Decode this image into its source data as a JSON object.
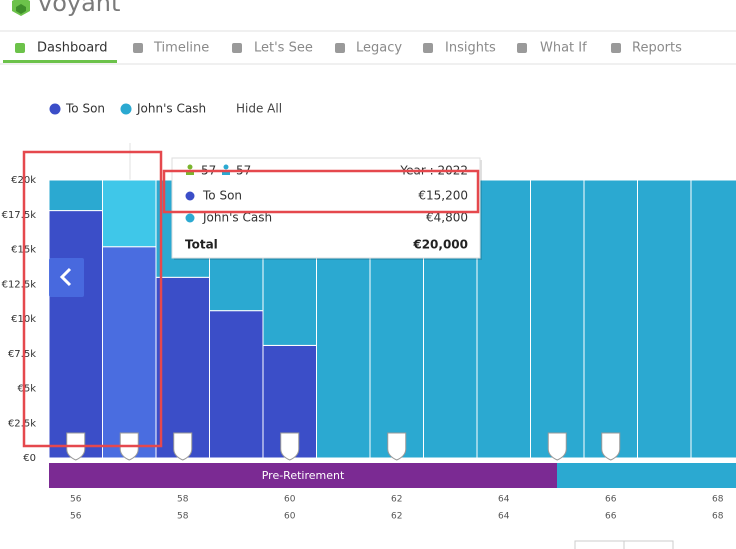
{
  "app": {
    "logo": "voyant"
  },
  "nav": {
    "tabs": [
      "Dashboard",
      "Timeline",
      "Let's See",
      "Legacy",
      "Insights",
      "What If",
      "Reports"
    ],
    "active": 0
  },
  "legend_controls": {
    "hide_all": "Hide All"
  },
  "chart_data": {
    "type": "stacked_bar",
    "categories": [
      56,
      null,
      58,
      null,
      60,
      null,
      62,
      null,
      64,
      null,
      66,
      null,
      68
    ],
    "categories_second_row": [
      56,
      null,
      58,
      null,
      60,
      null,
      62,
      null,
      64,
      null,
      66,
      null,
      68
    ],
    "series": [
      {
        "name": "To Son",
        "color": "#3b4ec8",
        "highlight_color": "#4a6de0",
        "values": [
          17800,
          15200,
          13000,
          10600,
          8100,
          0,
          0,
          0,
          0,
          0,
          0,
          0,
          0
        ]
      },
      {
        "name": "John's Cash",
        "color": "#2ba9d1",
        "highlight_color": "#3fc7e9",
        "values": [
          2200,
          4800,
          7000,
          9400,
          11900,
          20000,
          20000,
          20000,
          20000,
          20000,
          20000,
          20000,
          20000
        ]
      }
    ],
    "highlight_index": 1,
    "ylim": [
      0,
      20000
    ],
    "yticks": [
      {
        "value": 0,
        "label": "€0"
      },
      {
        "value": 2500,
        "label": "€2.5k"
      },
      {
        "value": 5000,
        "label": "€5k"
      },
      {
        "value": 7500,
        "label": "€7.5k"
      },
      {
        "value": 10000,
        "label": "€10k"
      },
      {
        "value": 12500,
        "label": "€12.5k"
      },
      {
        "value": 15000,
        "label": "€15k"
      },
      {
        "value": 17500,
        "label": "€17.5k"
      },
      {
        "value": 20000,
        "label": "€20k"
      }
    ],
    "marker_indices": [
      0,
      1,
      2,
      4,
      6,
      9,
      10
    ],
    "phase_label": "Pre-Retirement",
    "tooltip": {
      "ages": [
        "57",
        "57"
      ],
      "year": "Year : 2022",
      "rows": [
        {
          "name": "To Son",
          "label": "€15,200"
        },
        {
          "name": "John's Cash",
          "label": "€4,800"
        }
      ],
      "total_name": "Total",
      "total_label": "€20,000"
    }
  }
}
